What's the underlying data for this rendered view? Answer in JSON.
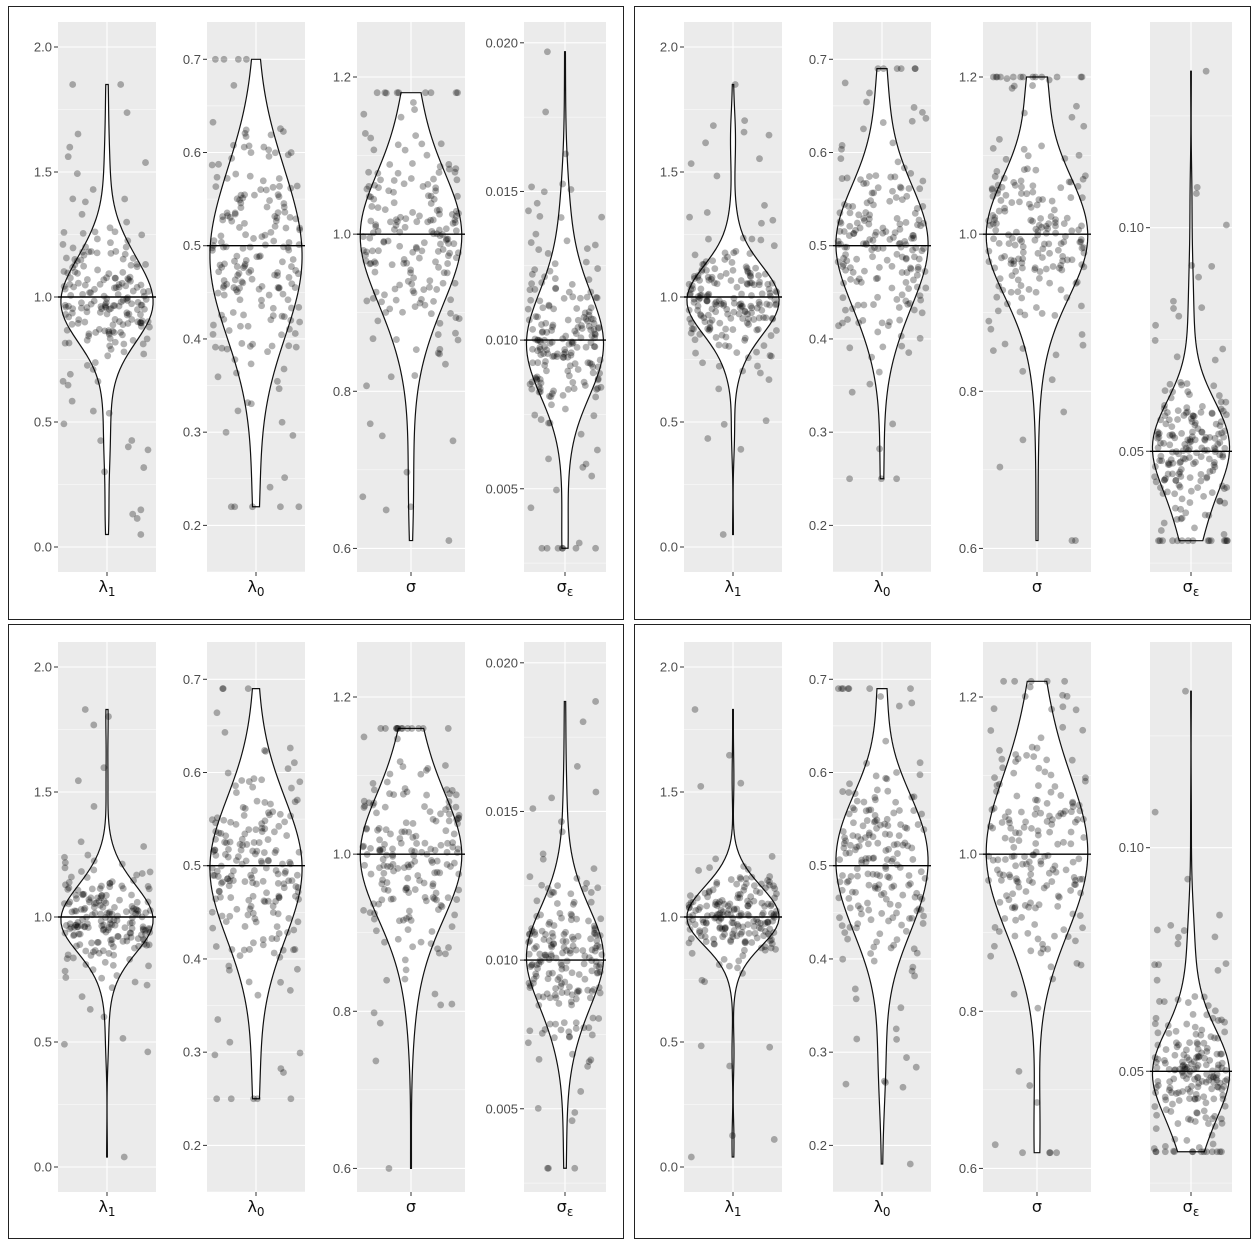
{
  "chart_data": [
    {
      "type": "violin",
      "panel": "top-left",
      "title": "",
      "facets": [
        {
          "label": "λ1",
          "true_value": 1.0,
          "ylim": [
            -0.1,
            2.1
          ],
          "y_ticks": [
            0.0,
            0.5,
            1.0,
            1.5,
            2.0
          ],
          "y_tick_labels": [
            "0.0",
            "0.5",
            "1.0",
            "1.5",
            "2.0"
          ],
          "median": 1.0,
          "min": 0.05,
          "max": 1.85,
          "spread": 0.12,
          "n": 200
        },
        {
          "label": "λ0",
          "true_value": 0.5,
          "ylim": [
            0.15,
            0.74
          ],
          "y_ticks": [
            0.2,
            0.3,
            0.4,
            0.5,
            0.6,
            0.7
          ],
          "y_tick_labels": [
            "0.2",
            "0.3",
            "0.4",
            "0.5",
            "0.6",
            "0.7"
          ],
          "median": 0.5,
          "min": 0.22,
          "max": 0.7,
          "spread": 0.06,
          "n": 200
        },
        {
          "label": "σ",
          "true_value": 1.0,
          "ylim": [
            0.57,
            1.27
          ],
          "y_ticks": [
            0.6,
            0.8,
            1.0,
            1.2
          ],
          "y_tick_labels": [
            "0.6",
            "0.8",
            "1.0",
            "1.2"
          ],
          "median": 1.0,
          "min": 0.61,
          "max": 1.18,
          "spread": 0.06,
          "n": 200
        },
        {
          "label": "σε",
          "true_value": 0.01,
          "ylim": [
            0.0022,
            0.0207
          ],
          "y_ticks": [
            0.005,
            0.01,
            0.015,
            0.02
          ],
          "y_tick_labels": [
            "0.005",
            "0.010",
            "0.015",
            "0.020"
          ],
          "median": 0.01,
          "min": 0.003,
          "max": 0.0197,
          "spread": 0.0014,
          "n": 200
        }
      ]
    },
    {
      "type": "violin",
      "panel": "top-right",
      "title": "",
      "facets": [
        {
          "label": "λ1",
          "true_value": 1.0,
          "ylim": [
            -0.1,
            2.1
          ],
          "y_ticks": [
            0.0,
            0.5,
            1.0,
            1.5,
            2.0
          ],
          "y_tick_labels": [
            "0.0",
            "0.5",
            "1.0",
            "1.5",
            "2.0"
          ],
          "median": 1.0,
          "min": 0.05,
          "max": 1.85,
          "spread": 0.1,
          "n": 200
        },
        {
          "label": "λ0",
          "true_value": 0.5,
          "ylim": [
            0.15,
            0.74
          ],
          "y_ticks": [
            0.2,
            0.3,
            0.4,
            0.5,
            0.6,
            0.7
          ],
          "y_tick_labels": [
            "0.2",
            "0.3",
            "0.4",
            "0.5",
            "0.6",
            "0.7"
          ],
          "median": 0.5,
          "min": 0.25,
          "max": 0.69,
          "spread": 0.05,
          "n": 200
        },
        {
          "label": "σ",
          "true_value": 1.0,
          "ylim": [
            0.57,
            1.27
          ],
          "y_ticks": [
            0.6,
            0.8,
            1.0,
            1.2
          ],
          "y_tick_labels": [
            "0.6",
            "0.8",
            "1.0",
            "1.2"
          ],
          "median": 1.0,
          "min": 0.61,
          "max": 1.2,
          "spread": 0.06,
          "n": 200
        },
        {
          "label": "σε",
          "true_value": 0.05,
          "ylim": [
            0.023,
            0.146
          ],
          "y_ticks": [
            0.05,
            0.1
          ],
          "y_tick_labels": [
            "0.05",
            "0.10"
          ],
          "median": 0.05,
          "min": 0.03,
          "max": 0.135,
          "spread": 0.008,
          "n": 200
        }
      ]
    },
    {
      "type": "violin",
      "panel": "bottom-left",
      "title": "",
      "facets": [
        {
          "label": "λ1",
          "true_value": 1.0,
          "ylim": [
            -0.1,
            2.1
          ],
          "y_ticks": [
            0.0,
            0.5,
            1.0,
            1.5,
            2.0
          ],
          "y_tick_labels": [
            "0.0",
            "0.5",
            "1.0",
            "1.5",
            "2.0"
          ],
          "median": 1.0,
          "min": 0.04,
          "max": 1.83,
          "spread": 0.1,
          "n": 200
        },
        {
          "label": "λ0",
          "true_value": 0.5,
          "ylim": [
            0.15,
            0.74
          ],
          "y_ticks": [
            0.2,
            0.3,
            0.4,
            0.5,
            0.6,
            0.7
          ],
          "y_tick_labels": [
            "0.2",
            "0.3",
            "0.4",
            "0.5",
            "0.6",
            "0.7"
          ],
          "median": 0.5,
          "min": 0.25,
          "max": 0.69,
          "spread": 0.06,
          "n": 200
        },
        {
          "label": "σ",
          "true_value": 1.0,
          "ylim": [
            0.57,
            1.27
          ],
          "y_ticks": [
            0.6,
            0.8,
            1.0,
            1.2
          ],
          "y_tick_labels": [
            "0.6",
            "0.8",
            "1.0",
            "1.2"
          ],
          "median": 1.0,
          "min": 0.6,
          "max": 1.16,
          "spread": 0.06,
          "n": 200
        },
        {
          "label": "σε",
          "true_value": 0.01,
          "ylim": [
            0.0022,
            0.0207
          ],
          "y_ticks": [
            0.005,
            0.01,
            0.015,
            0.02
          ],
          "y_tick_labels": [
            "0.005",
            "0.010",
            "0.015",
            "0.020"
          ],
          "median": 0.01,
          "min": 0.003,
          "max": 0.0187,
          "spread": 0.0013,
          "n": 200
        }
      ]
    },
    {
      "type": "violin",
      "panel": "bottom-right",
      "title": "",
      "facets": [
        {
          "label": "λ1",
          "true_value": 1.0,
          "ylim": [
            -0.1,
            2.1
          ],
          "y_ticks": [
            0.0,
            0.5,
            1.0,
            1.5,
            2.0
          ],
          "y_tick_labels": [
            "0.0",
            "0.5",
            "1.0",
            "1.5",
            "2.0"
          ],
          "median": 1.0,
          "min": 0.04,
          "max": 1.83,
          "spread": 0.09,
          "n": 200
        },
        {
          "label": "λ0",
          "true_value": 0.5,
          "ylim": [
            0.15,
            0.74
          ],
          "y_ticks": [
            0.2,
            0.3,
            0.4,
            0.5,
            0.6,
            0.7
          ],
          "y_tick_labels": [
            "0.2",
            "0.3",
            "0.4",
            "0.5",
            "0.6",
            "0.7"
          ],
          "median": 0.5,
          "min": 0.18,
          "max": 0.69,
          "spread": 0.05,
          "n": 200
        },
        {
          "label": "σ",
          "true_value": 1.0,
          "ylim": [
            0.57,
            1.27
          ],
          "y_ticks": [
            0.6,
            0.8,
            1.0,
            1.2
          ],
          "y_tick_labels": [
            "0.6",
            "0.8",
            "1.0",
            "1.2"
          ],
          "median": 1.0,
          "min": 0.62,
          "max": 1.22,
          "spread": 0.07,
          "n": 200
        },
        {
          "label": "σε",
          "true_value": 0.05,
          "ylim": [
            0.023,
            0.146
          ],
          "y_ticks": [
            0.05,
            0.1
          ],
          "y_tick_labels": [
            "0.05",
            "0.10"
          ],
          "median": 0.05,
          "min": 0.032,
          "max": 0.135,
          "spread": 0.008,
          "n": 200
        }
      ]
    }
  ],
  "colors": {
    "plot_background": "#ebebeb",
    "grid": "#ffffff",
    "points": "#000000",
    "violin_fill": "#ffffff",
    "violin_outline": "#111111",
    "reference_line": "#000000"
  }
}
